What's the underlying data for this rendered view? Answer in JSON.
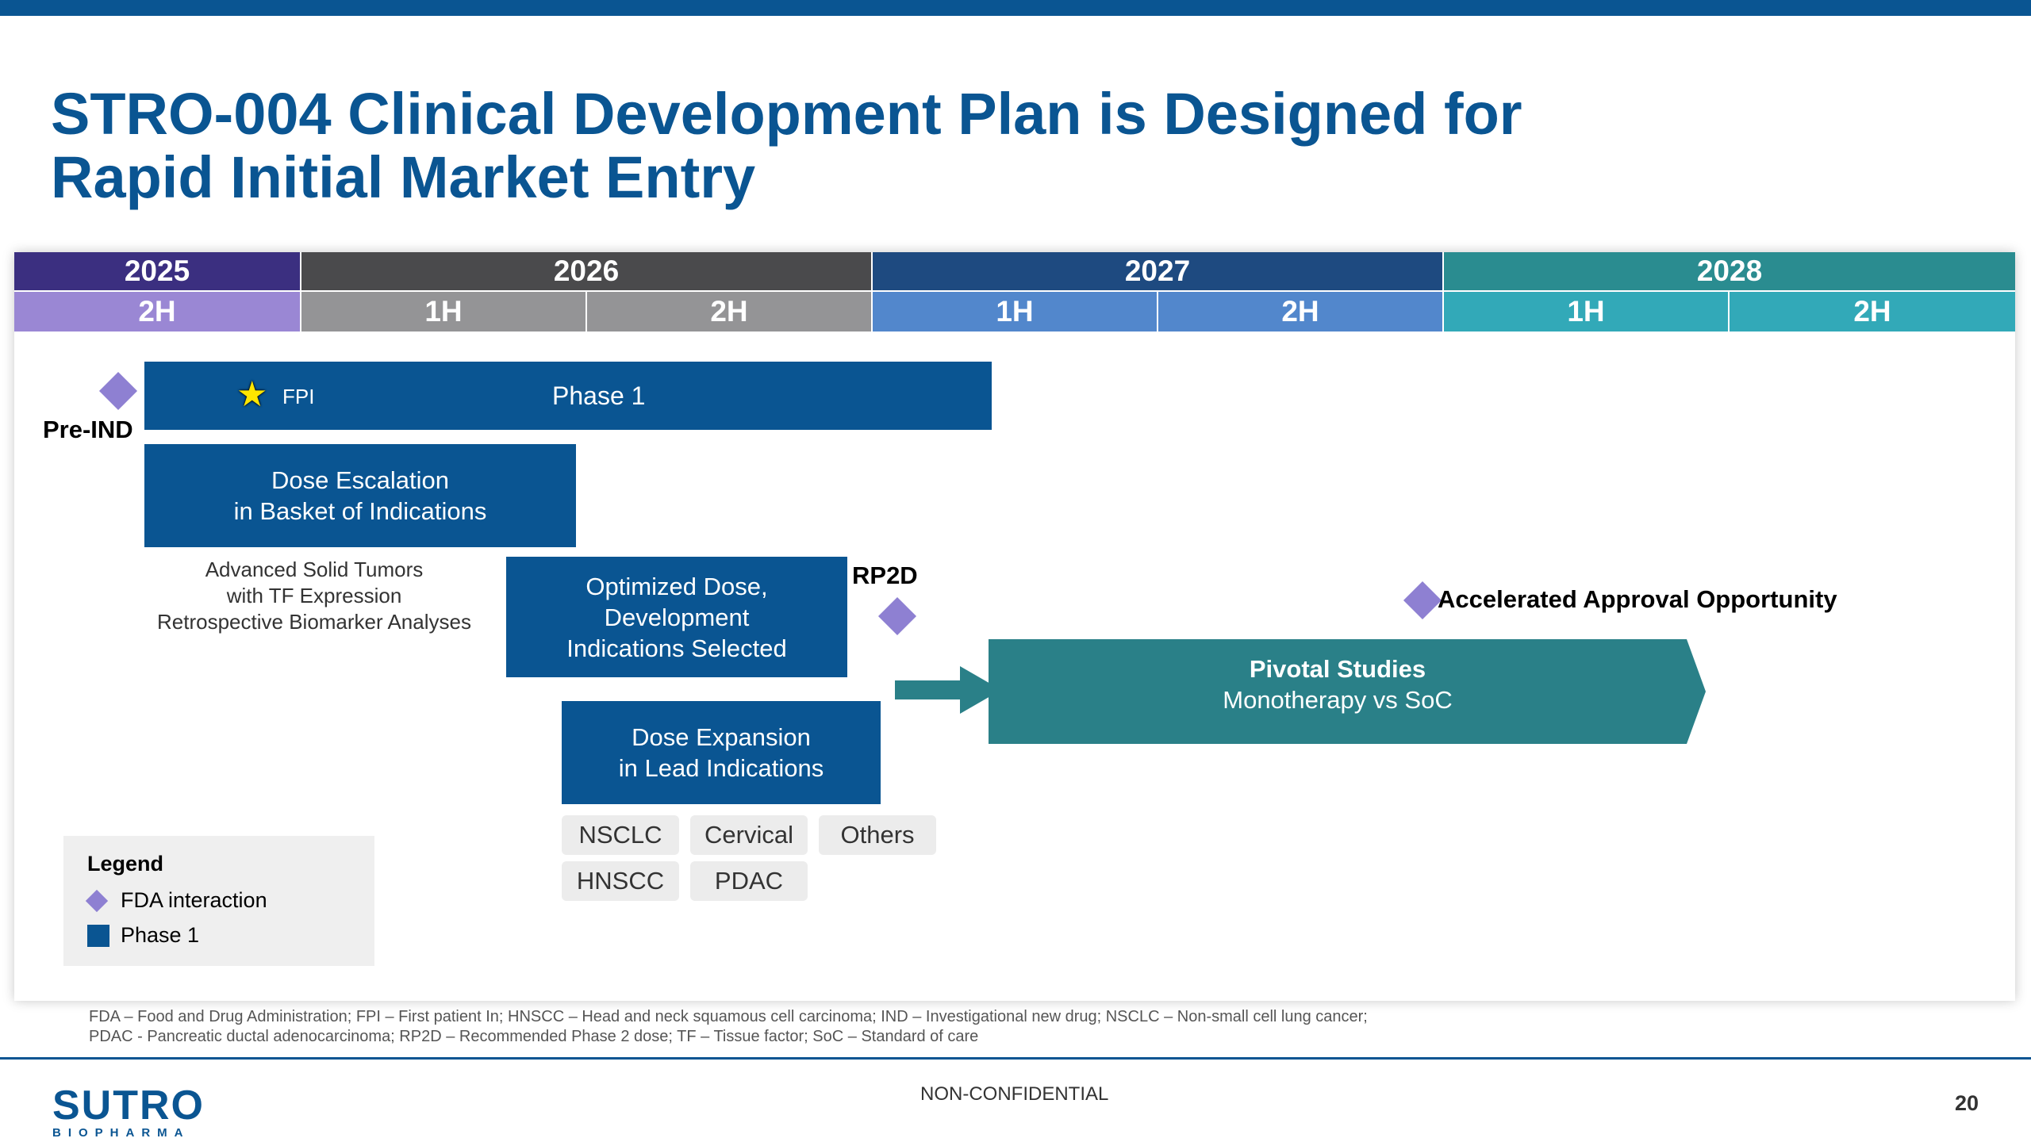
{
  "slide": {
    "title_line1": "STRO-004 Clinical Development Plan is Designed for",
    "title_line2": "Rapid Initial Market Entry"
  },
  "timeline": {
    "years": [
      "2025",
      "2026",
      "2027",
      "2028"
    ],
    "halves": [
      "2H",
      "1H",
      "2H",
      "1H",
      "2H",
      "1H",
      "2H"
    ],
    "colors": {
      "y2025": "#3b2f80",
      "h2025": "#9a87d4",
      "y2026": "#4a4a4c",
      "h2026": "#949496",
      "y2027": "#1e4a80",
      "h2027": "#5287cc",
      "y2028": "#2a8c90",
      "h2028": "#32a9b8"
    }
  },
  "markers": {
    "pre_ind": "Pre-IND",
    "rp2d": "RP2D",
    "accelerated": "Accelerated Approval Opportunity",
    "fpi": "FPI"
  },
  "bars": {
    "phase1": "Phase 1",
    "dose_escalation_l1": "Dose Escalation",
    "dose_escalation_l2": "in Basket of Indications",
    "optimized_l1": "Optimized Dose,",
    "optimized_l2": "Development",
    "optimized_l3": "Indications Selected",
    "expansion_l1": "Dose Expansion",
    "expansion_l2": "in Lead Indications",
    "pivotal_l1": "Pivotal Studies",
    "pivotal_l2": "Monotherapy vs SoC"
  },
  "notes": {
    "basket_l1": "Advanced Solid Tumors",
    "basket_l2": "with TF Expression",
    "basket_l3": "Retrospective Biomarker Analyses"
  },
  "indications": [
    "NSCLC",
    "Cervical",
    "Others",
    "HNSCC",
    "PDAC"
  ],
  "legend": {
    "title": "Legend",
    "fda": "FDA interaction",
    "phase1": "Phase 1"
  },
  "footer": {
    "footnote_l1": "FDA – Food and Drug Administration; FPI – First patient In; HNSCC – Head and neck squamous cell carcinoma; IND – Investigational new drug; NSCLC – Non-small cell lung cancer;",
    "footnote_l2": "PDAC - Pancreatic ductal adenocarcinoma; RP2D – Recommended Phase 2 dose; TF – Tissue factor; SoC – Standard of care",
    "classification": "NON-CONFIDENTIAL",
    "page_number": "20",
    "logo_name": "SUTRO",
    "logo_sub": "BIOPHARMA"
  }
}
